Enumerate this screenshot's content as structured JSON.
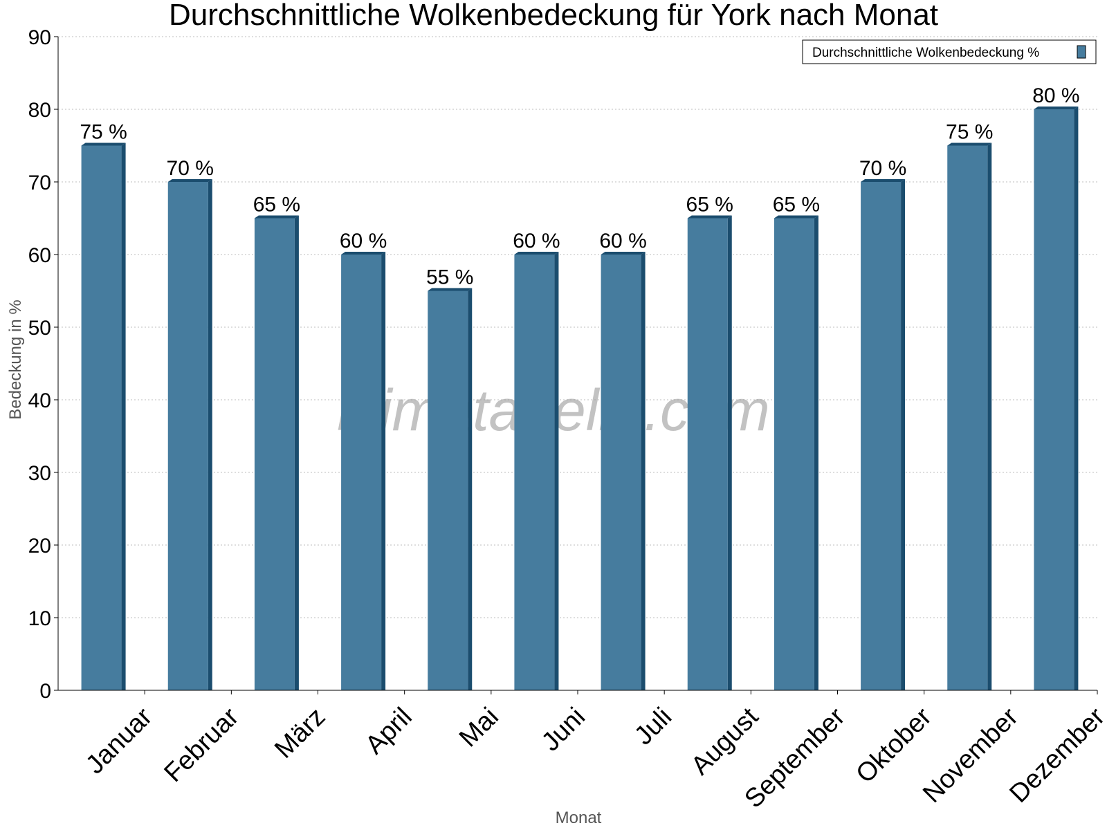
{
  "chart_data": {
    "type": "bar",
    "title": "Durchschnittliche Wolkenbedeckung für York nach Monat",
    "xlabel": "Monat",
    "ylabel": "Bedeckung in %",
    "ylim": [
      0,
      90
    ],
    "yticks": [
      0,
      10,
      20,
      30,
      40,
      50,
      60,
      70,
      80,
      90
    ],
    "grid": true,
    "legend_position": "top-right",
    "categories": [
      "Januar",
      "Februar",
      "März",
      "April",
      "Mai",
      "Juni",
      "Juli",
      "August",
      "September",
      "Oktober",
      "November",
      "Dezember"
    ],
    "series": [
      {
        "name": "Durchschnittliche Wolkenbedeckung %",
        "values": [
          75,
          70,
          65,
          60,
          55,
          60,
          60,
          65,
          65,
          70,
          75,
          80
        ],
        "data_labels": [
          "75 %",
          "70 %",
          "65 %",
          "60 %",
          "55 %",
          "60 %",
          "60 %",
          "65 %",
          "65 %",
          "70 %",
          "75 %",
          "80 %"
        ],
        "color": "#467c9e",
        "side_color": "#1b4d6e"
      }
    ]
  },
  "watermark": "klimatabelle.com"
}
